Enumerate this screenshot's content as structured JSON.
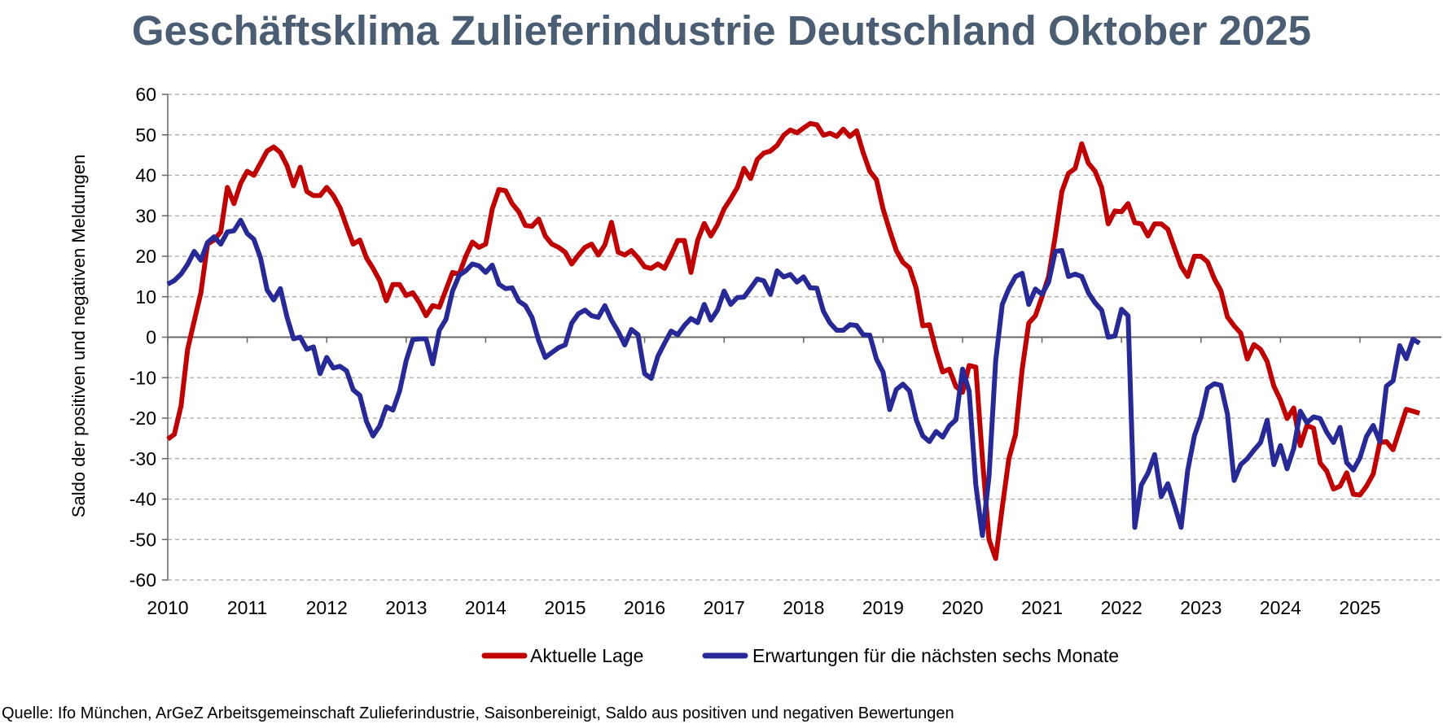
{
  "chart_data": {
    "type": "line",
    "title": "Geschäftsklima Zulieferindustrie Deutschland Oktober 2025",
    "ylabel": "Saldo der positiven und negativen Meldungen",
    "xlabel": "",
    "x_tick_labels": [
      "2010",
      "2011",
      "2012",
      "2013",
      "2014",
      "2015",
      "2016",
      "2017",
      "2018",
      "2019",
      "2020",
      "2021",
      "2022",
      "2023",
      "2024",
      "2025"
    ],
    "y_tick_labels": [
      "60",
      "50",
      "40",
      "30",
      "20",
      "10",
      "0",
      "-10",
      "-20",
      "-30",
      "-40",
      "-50",
      "-60"
    ],
    "ylim": [
      -60,
      60
    ],
    "x_range": [
      "2010-01",
      "2025-10"
    ],
    "x_frequency": "monthly",
    "grid": "horizontal dashed",
    "legend_position": "bottom",
    "series": [
      {
        "name": "Aktuelle Lage",
        "color": "#c00000",
        "values": [
          -25.2,
          -24,
          -17,
          -3,
          4,
          11,
          23,
          24,
          26,
          37,
          33,
          38,
          41,
          40,
          43,
          46,
          47,
          45.6,
          42.4,
          37.4,
          42,
          36,
          35,
          35,
          37,
          35,
          32,
          27.4,
          23,
          24,
          19.6,
          17,
          14,
          9,
          13,
          13,
          10.3,
          11,
          8.5,
          5.3,
          7.8,
          7.4,
          11.7,
          16,
          15.6,
          20,
          23.5,
          22.2,
          23,
          31.7,
          36.5,
          36.2,
          33,
          31,
          27.6,
          27.4,
          29.2,
          25,
          23,
          22.2,
          21,
          18.1,
          20.3,
          22.2,
          23,
          20.3,
          22.8,
          28.4,
          21,
          20.3,
          21.4,
          19.6,
          17.4,
          17,
          18.1,
          17,
          20.3,
          23.9,
          23.9,
          16,
          23.9,
          28.1,
          25,
          27.8,
          31.7,
          34.2,
          37,
          41.7,
          39.2,
          43.9,
          45.5,
          46,
          47.4,
          49.9,
          51.2,
          50.5,
          51.7,
          52.8,
          52.5,
          49.9,
          50.4,
          49.6,
          51.4,
          49.6,
          51,
          45.6,
          41,
          38.9,
          31.7,
          26.4,
          21.4,
          18.5,
          17.1,
          12.1,
          2.8,
          3.1,
          -3.3,
          -8.6,
          -7.9,
          -12.2,
          -13.6,
          -7,
          -7.4,
          -30,
          -50,
          -54.7,
          -42,
          -30,
          -24,
          -8,
          3.5,
          5.3,
          10,
          15,
          25,
          36,
          40.5,
          41.7,
          47.8,
          43,
          41,
          37,
          28,
          31.2,
          31,
          33,
          28.3,
          28,
          25,
          28,
          28,
          26.7,
          22,
          17.5,
          15,
          20,
          20,
          18.6,
          14.5,
          11.5,
          5,
          2.8,
          1,
          -5.4,
          -1.8,
          -3,
          -6,
          -12.1,
          -15.5,
          -20.1,
          -17.5,
          -26.8,
          -21.8,
          -22.5,
          -31.1,
          -33.1,
          -37.5,
          -36.8,
          -33.5,
          -38.8,
          -39,
          -36.8,
          -33.8,
          -26,
          -25.8,
          -27.8,
          -22.8,
          -17.8,
          -18.3,
          -18.8
        ]
      },
      {
        "name": "Erwartungen für die nächsten sechs Monate",
        "color": "#262996",
        "values": [
          13.1,
          14,
          15.6,
          18,
          21.2,
          19,
          23.4,
          24.8,
          23,
          26,
          26.3,
          28.9,
          25.6,
          24.2,
          19.6,
          11.7,
          9.2,
          12,
          5,
          -0.4,
          0,
          -3,
          -2.4,
          -9,
          -5,
          -7.6,
          -7.2,
          -8.3,
          -13,
          -14.4,
          -20.8,
          -24.4,
          -21.9,
          -17.2,
          -18,
          -13.3,
          -5.8,
          -0.6,
          -0.4,
          -0.4,
          -6.6,
          1.7,
          4.4,
          11.4,
          15.3,
          16.4,
          18.1,
          17.6,
          16,
          17.8,
          13.1,
          12,
          12.2,
          8.9,
          7.8,
          4.9,
          -0.8,
          -5,
          -3.8,
          -2.6,
          -1.9,
          3.5,
          5.8,
          6.7,
          5.3,
          4.9,
          7.8,
          4.2,
          1.4,
          -1.9,
          1.9,
          0.6,
          -9,
          -10.2,
          -4.7,
          -1.5,
          1.5,
          0.6,
          2.9,
          4.6,
          3.6,
          8.1,
          4.2,
          6.7,
          11.4,
          8.1,
          9.8,
          9.9,
          12.1,
          14.4,
          13.9,
          10.6,
          16.4,
          14.9,
          15.5,
          13.6,
          14.9,
          12.2,
          12.1,
          6.4,
          3.5,
          1.7,
          1.7,
          3.1,
          2.9,
          0.6,
          0.5,
          -5.4,
          -8.6,
          -17.9,
          -12.9,
          -11.6,
          -13.3,
          -20.4,
          -24.4,
          -25.8,
          -23.3,
          -24.7,
          -21.9,
          -20.4,
          -7.9,
          -13.3,
          -36.5,
          -49,
          -34.4,
          -5.8,
          8.1,
          12,
          15,
          15.8,
          8.1,
          11.9,
          10.6,
          13.6,
          21.2,
          21.4,
          15,
          15.6,
          15,
          11,
          8.5,
          6.7,
          0,
          0.3,
          6.9,
          5.3,
          -47,
          -36.5,
          -33.6,
          -29,
          -39.4,
          -36.2,
          -41.5,
          -47,
          -32.9,
          -24.4,
          -19.7,
          -12.6,
          -11.5,
          -11.9,
          -19,
          -35.4,
          -31.5,
          -30,
          -27.9,
          -26,
          -20.5,
          -31.5,
          -26.8,
          -32.5,
          -27.5,
          -18.3,
          -21.1,
          -19.7,
          -20.1,
          -23.5,
          -26,
          -22.3,
          -31,
          -32.8,
          -29.8,
          -24.5,
          -21.8,
          -25.8,
          -12.1,
          -10.8,
          -2.1,
          -5.3,
          -0.5,
          -1.5
        ]
      }
    ]
  },
  "source": "Quelle: Ifo München, ArGeZ Arbeitsgemeinschaft Zulieferindustrie, Saisonbereinigt, Saldo aus positiven und negativen Bewertungen"
}
